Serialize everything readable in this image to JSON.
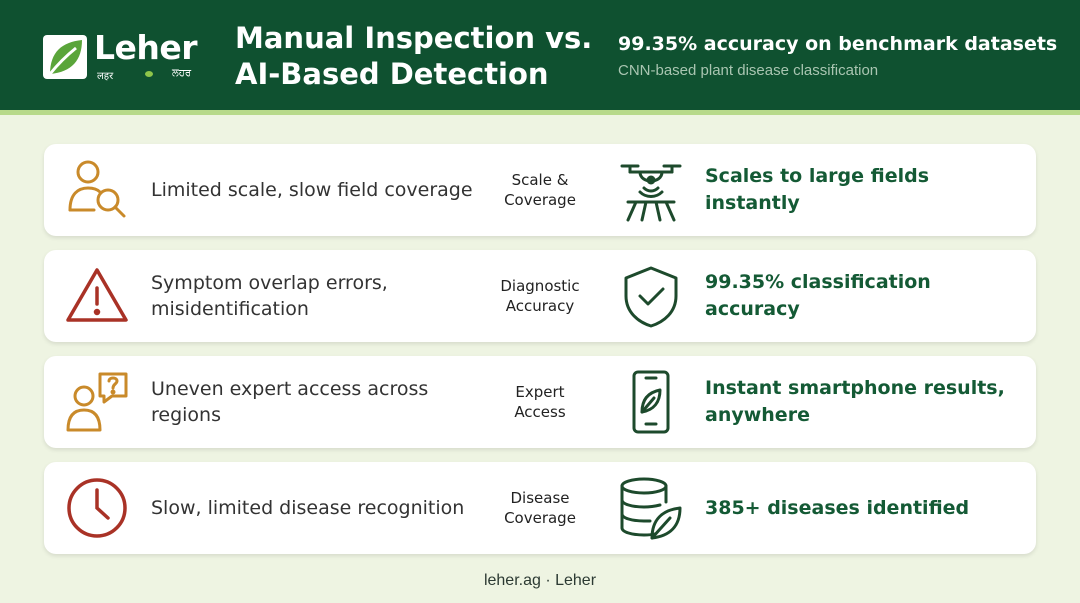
{
  "brand": {
    "name": "Leher",
    "sub_left": "लहर",
    "sub_right": "ਲਹਰ"
  },
  "header": {
    "title_line1": "Manual Inspection vs.",
    "title_line2": "AI-Based Detection",
    "highlight": "99.35% accuracy on benchmark datasets",
    "subtext": "CNN-based plant disease classification"
  },
  "rows": [
    {
      "left_icon": "person-search-icon",
      "left_text": "Limited scale, slow field coverage",
      "label_line1": "Scale &",
      "label_line2": "Coverage",
      "right_icon": "drone-icon",
      "right_text": "Scales to large fields instantly"
    },
    {
      "left_icon": "warning-triangle-icon",
      "left_text": "Symptom overlap errors, misidentification",
      "label_line1": "Diagnostic",
      "label_line2": "Accuracy",
      "right_icon": "shield-check-icon",
      "right_text": "99.35% classification accuracy"
    },
    {
      "left_icon": "person-question-icon",
      "left_text": "Uneven expert access across regions",
      "label_line1": "Expert",
      "label_line2": "Access",
      "right_icon": "smartphone-leaf-icon",
      "right_text": "Instant smartphone results, anywhere"
    },
    {
      "left_icon": "clock-icon",
      "left_text": "Slow, limited disease recognition",
      "label_line1": "Disease",
      "label_line2": "Coverage",
      "right_icon": "database-leaf-icon",
      "right_text": "385+ diseases identified"
    }
  ],
  "footer": "leher.ag · Leher",
  "colors": {
    "header_bg": "#0f5130",
    "accent_green": "#145a35",
    "icon_amber": "#c98a2a",
    "icon_red": "#a93226",
    "page_bg": "#eef4e2"
  }
}
